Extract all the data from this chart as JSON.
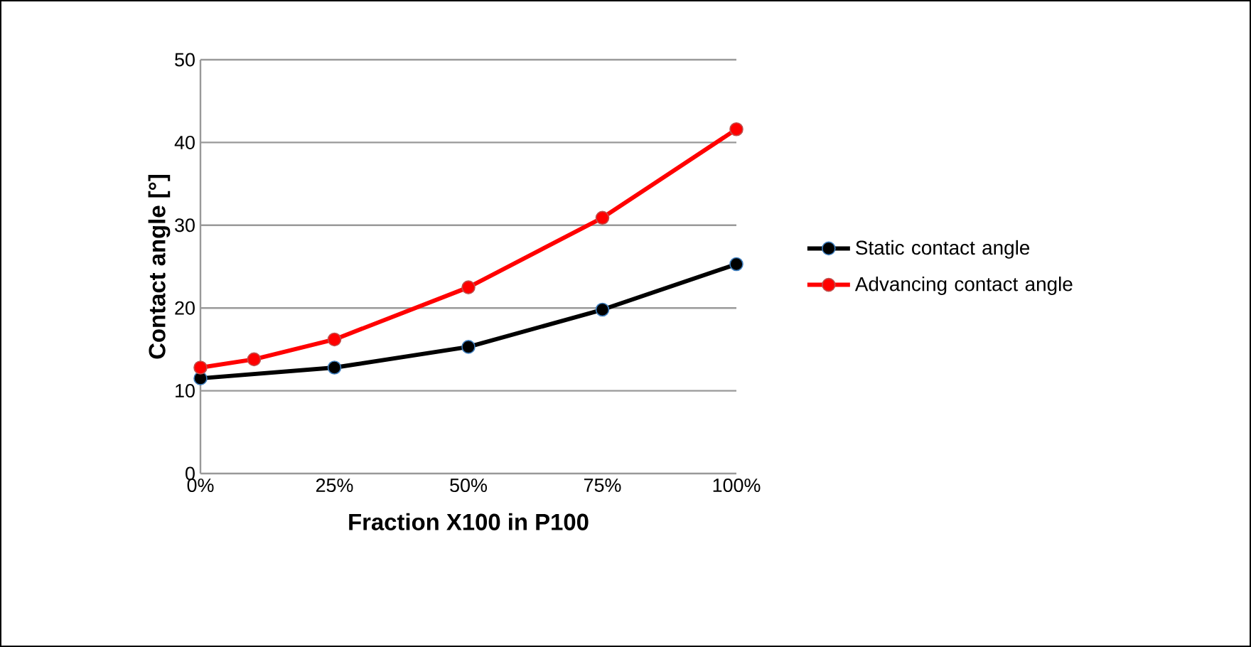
{
  "chart_data": {
    "type": "line",
    "xlabel": "Fraction X100 in P100",
    "ylabel": "Contact angle [°]",
    "xlim": [
      0,
      100
    ],
    "ylim": [
      0,
      50
    ],
    "xticks": [
      {
        "value": 0,
        "label": "0%"
      },
      {
        "value": 25,
        "label": "25%"
      },
      {
        "value": 50,
        "label": "50%"
      },
      {
        "value": 75,
        "label": "75%"
      },
      {
        "value": 100,
        "label": "100%"
      }
    ],
    "yticks": [
      0,
      10,
      20,
      30,
      40,
      50
    ],
    "grid": "y",
    "legend": "right",
    "marker": "circle",
    "line_style": "solid",
    "series": [
      {
        "name": "Static contact angle",
        "color": "#000000",
        "x": [
          0,
          25,
          50,
          75,
          100
        ],
        "values": [
          11.5,
          12.8,
          15.3,
          19.8,
          25.3
        ]
      },
      {
        "name": "Advancing contact angle",
        "color": "#ff0000",
        "x": [
          0,
          10,
          25,
          50,
          75,
          100
        ],
        "values": [
          12.8,
          13.8,
          16.2,
          22.5,
          30.9,
          41.6
        ]
      }
    ]
  }
}
